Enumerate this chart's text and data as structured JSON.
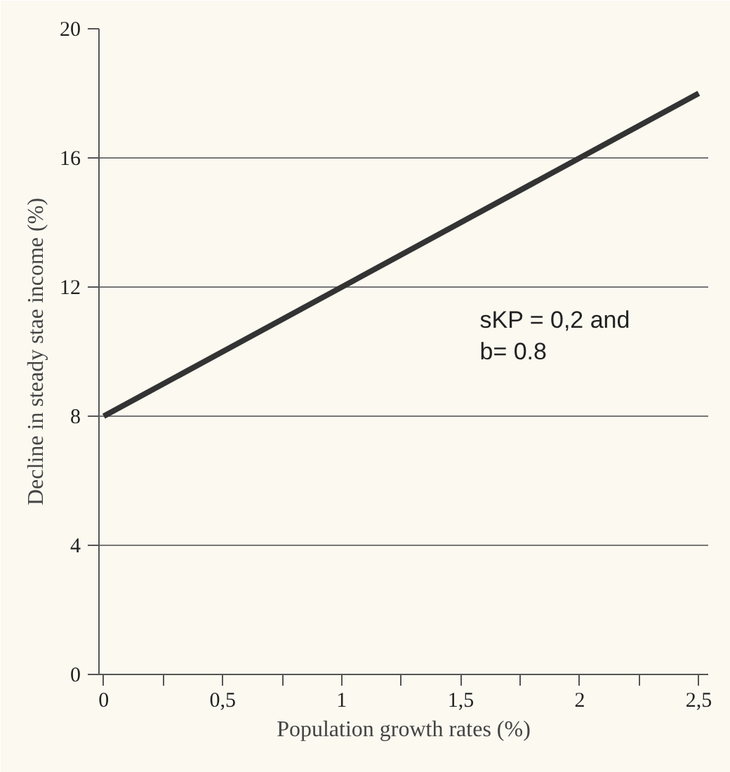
{
  "chart_data": {
    "type": "line",
    "xlabel": "Population growth rates (%)",
    "ylabel": "Decline in steady stae income (%)",
    "x": [
      0,
      2.5
    ],
    "series": [
      {
        "color": "#333333",
        "values": [
          8,
          18
        ]
      }
    ],
    "xlim": [
      -0.02,
      2.54
    ],
    "ylim": [
      0,
      20
    ],
    "xticks": [
      0,
      {
        "value": 0.25,
        "label": null
      },
      {
        "value": 0.5,
        "label": "0,5"
      },
      {
        "value": 0.75,
        "label": null
      },
      1,
      {
        "value": 1.25,
        "label": null
      },
      {
        "value": 1.5,
        "label": "1,5"
      },
      {
        "value": 1.75,
        "label": null
      },
      2,
      {
        "value": 2.25,
        "label": null
      },
      {
        "value": 2.5,
        "label": "2,5"
      }
    ],
    "yticks": [
      0,
      4,
      8,
      12,
      16,
      20
    ],
    "grid": "y",
    "marker": "none",
    "line_style": "solid",
    "annotations": [
      "sKP = 0,2 and b= 0.8"
    ]
  }
}
